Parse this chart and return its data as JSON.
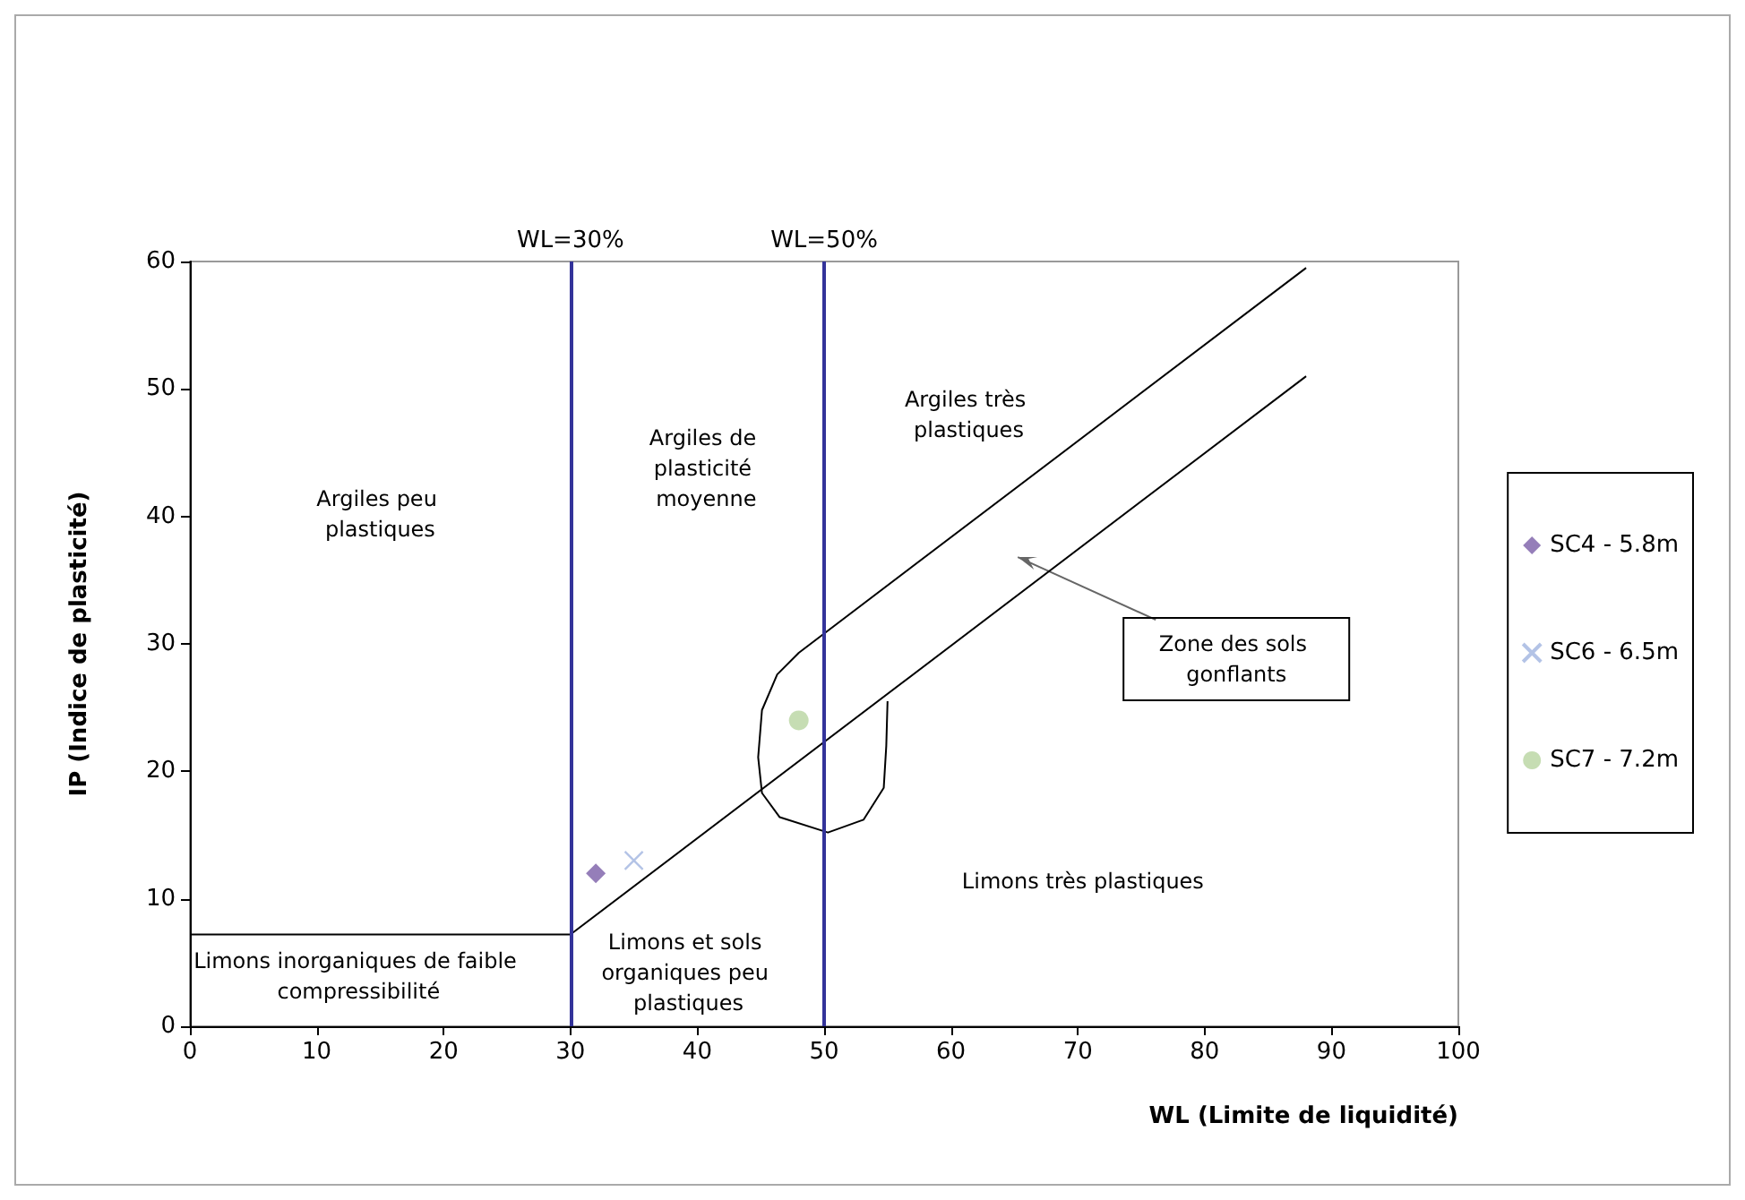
{
  "chart_data": {
    "type": "scatter",
    "xlabel": "WL (Limite de liquidité)",
    "ylabel": "IP (Indice de plasticité)",
    "xlim": [
      0,
      100
    ],
    "ylim": [
      0,
      60
    ],
    "xticks": [
      0,
      10,
      20,
      30,
      40,
      50,
      60,
      70,
      80,
      90,
      100
    ],
    "yticks": [
      0,
      10,
      20,
      30,
      40,
      50,
      60
    ],
    "grid": false,
    "legend": "right",
    "series": [
      {
        "type": "line",
        "color": "#000000",
        "marker": "none",
        "x": [
          0,
          30,
          88
        ],
        "values": [
          7.2,
          7.2,
          51
        ]
      },
      {
        "type": "line",
        "color": "#000000",
        "marker": "none",
        "x": [
          88,
          48,
          46.3,
          45.1,
          44.8,
          45.1,
          46.5,
          50.3,
          53.1,
          54.7,
          54.9,
          55
        ],
        "values": [
          59.5,
          29.3,
          27.6,
          24.8,
          21.1,
          18.3,
          16.4,
          15.2,
          16.2,
          18.7,
          22,
          25.5
        ]
      },
      {
        "name": "SC4 - 5.8m",
        "color": "#7b5ea7",
        "marker": "diamond",
        "x": [
          32
        ],
        "values": [
          12
        ]
      },
      {
        "name": "SC6 - 6.5m",
        "color": "#a0b4e0",
        "marker": "cross",
        "x": [
          35
        ],
        "values": [
          13
        ]
      },
      {
        "name": "SC7 - 7.2m",
        "color": "#b8d4a0",
        "marker": "circle",
        "x": [
          48
        ],
        "values": [
          24
        ]
      }
    ],
    "ref_lines": [
      {
        "axis": "x",
        "value": 30,
        "label": "WL=30%",
        "color": "#33339a"
      },
      {
        "axis": "x",
        "value": 50,
        "label": "WL=50%",
        "color": "#33339a"
      }
    ],
    "annotations": [
      "Argiles peu plastiques",
      "Argiles de plasticité moyenne",
      "Argiles très plastiques",
      "Limons très plastiques",
      "Limons et sols organiques peu plastiques",
      "Limons inorganiques de faible compressibilité",
      "Zone des sols gonflants"
    ]
  }
}
